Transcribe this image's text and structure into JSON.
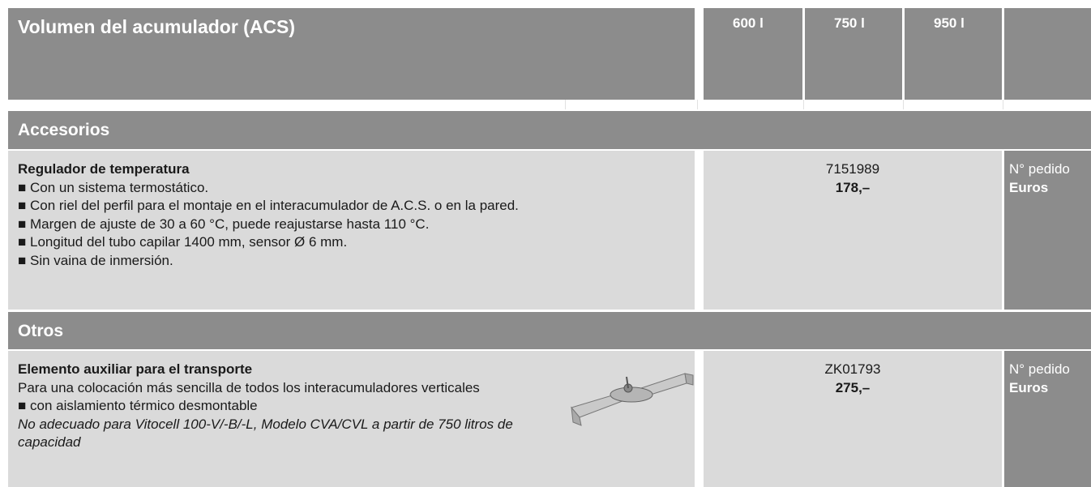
{
  "header": {
    "title": "Volumen del acumulador (ACS)",
    "columns": [
      "600 l",
      "750 l",
      "950 l"
    ]
  },
  "sections": [
    {
      "title": "Accesorios",
      "item": {
        "name": "Regulador de temperatura",
        "lines": [
          "■ Con un sistema termostático.",
          "■ Con riel del perfil para el montaje en el interacumulador de A.C.S. o en la pared.",
          "■ Margen de ajuste de 30 a 60 °C, puede reajustarse hasta 110 °C.",
          "■ Longitud del tubo capilar 1400 mm, sensor Ø 6 mm.",
          "■ Sin vaina de inmersión."
        ],
        "order": "7151989",
        "price": "178,–",
        "order_label": "N° pedido",
        "price_label": "Euros"
      }
    },
    {
      "title": "Otros",
      "item": {
        "name": "Elemento auxiliar para el transporte",
        "lines": [
          "Para una colocación más sencilla de todos los interacumuladores verticales",
          "■ con aislamiento térmico desmontable"
        ],
        "note": "No adecuado para Vitocell 100-V/-B/-L, Modelo CVA/CVL a partir de 750 litros de capacidad",
        "order": "ZK01793",
        "price": "275,–",
        "order_label": "N° pedido",
        "price_label": "Euros"
      }
    }
  ]
}
